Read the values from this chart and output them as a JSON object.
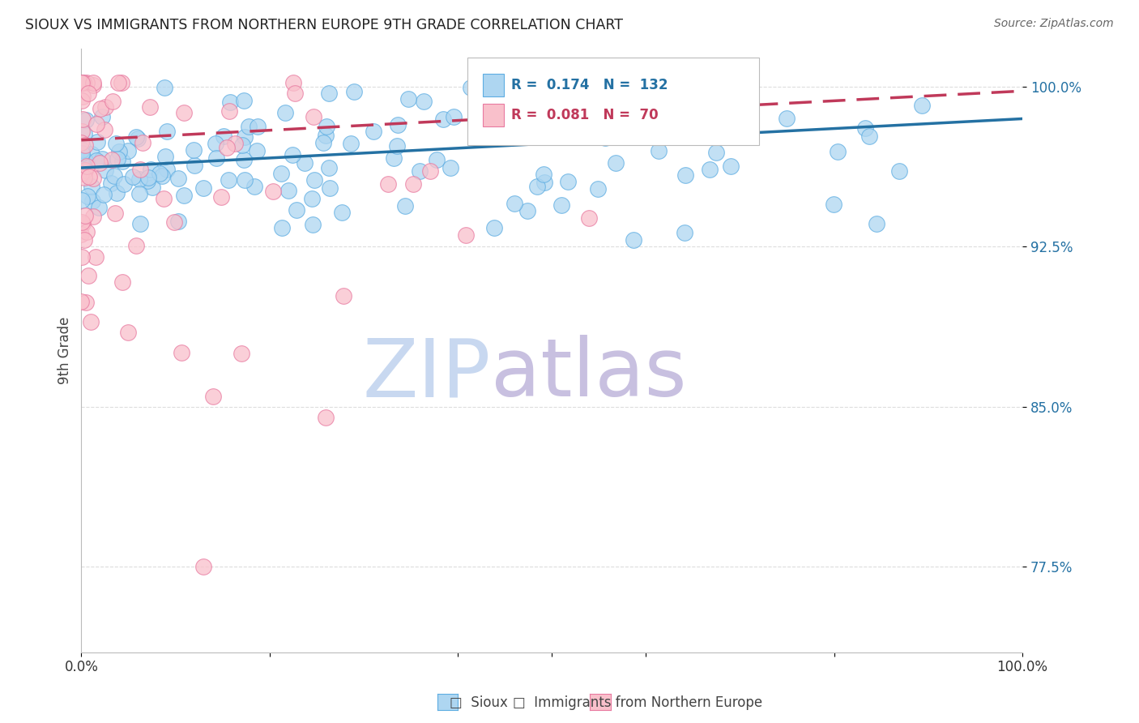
{
  "title": "SIOUX VS IMMIGRANTS FROM NORTHERN EUROPE 9TH GRADE CORRELATION CHART",
  "source": "Source: ZipAtlas.com",
  "ylabel": "9th Grade",
  "ytick_labels": [
    "77.5%",
    "85.0%",
    "92.5%",
    "100.0%"
  ],
  "ytick_values": [
    0.775,
    0.85,
    0.925,
    1.0
  ],
  "xlim": [
    0.0,
    1.0
  ],
  "ylim": [
    0.735,
    1.018
  ],
  "blue_R": 0.174,
  "blue_N": 132,
  "pink_R": 0.081,
  "pink_N": 70,
  "blue_color": "#aed6f1",
  "blue_edge_color": "#5dade2",
  "blue_line_color": "#2471a3",
  "pink_color": "#f9c0cb",
  "pink_edge_color": "#e879a0",
  "pink_line_color": "#c0395a",
  "watermark_zip_color": "#c8d8f0",
  "watermark_atlas_color": "#c8c0e0",
  "legend_text_blue": "#2471a3",
  "legend_text_pink": "#c0395a",
  "grid_color": "#dddddd",
  "background_color": "#ffffff",
  "ytick_color": "#2471a3",
  "xtick_color": "#333333"
}
